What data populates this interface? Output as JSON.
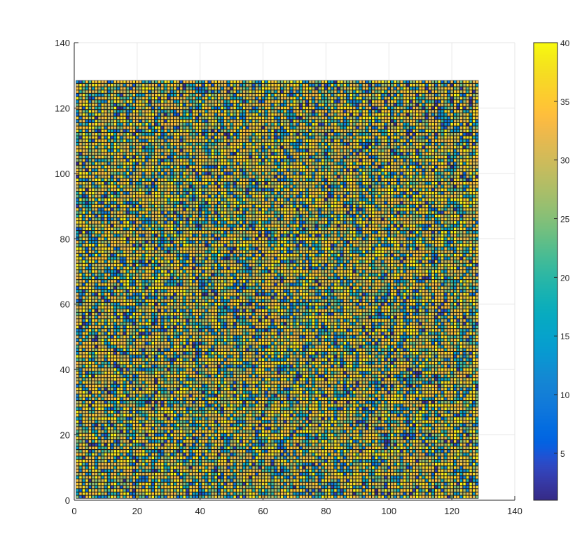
{
  "chart_data": {
    "type": "heatmap",
    "title": "",
    "xlabel": "",
    "ylabel": "",
    "xlim": [
      0,
      140
    ],
    "ylim": [
      0,
      140
    ],
    "x_ticks": [
      0,
      20,
      40,
      60,
      80,
      100,
      120,
      140
    ],
    "y_ticks": [
      0,
      20,
      40,
      60,
      80,
      100,
      120,
      140
    ],
    "x_tick_labels": [
      "0",
      "20",
      "40",
      "60",
      "80",
      "100",
      "120",
      "140"
    ],
    "y_tick_labels": [
      "0",
      "20",
      "40",
      "60",
      "80",
      "100",
      "120",
      "140"
    ],
    "grid": true,
    "matrix": {
      "rows": 128,
      "cols": 128,
      "x_range": [
        1,
        128
      ],
      "y_range": [
        1,
        128
      ],
      "value_range": [
        1,
        40
      ],
      "pattern": "dense pseudo-random integer field with diagonal streaks, values concentrated near 30-40"
    },
    "colorbar": {
      "location": "right",
      "limits": [
        1,
        40
      ],
      "ticks": [
        5,
        10,
        15,
        20,
        25,
        30,
        35,
        40
      ],
      "tick_labels": [
        "5",
        "10",
        "15",
        "20",
        "25",
        "30",
        "35",
        "40"
      ],
      "colormap": "parula"
    },
    "colors": {
      "grid": "#e6e6e6",
      "axis": "#262626",
      "cell_border": "#1a1a1a"
    }
  }
}
